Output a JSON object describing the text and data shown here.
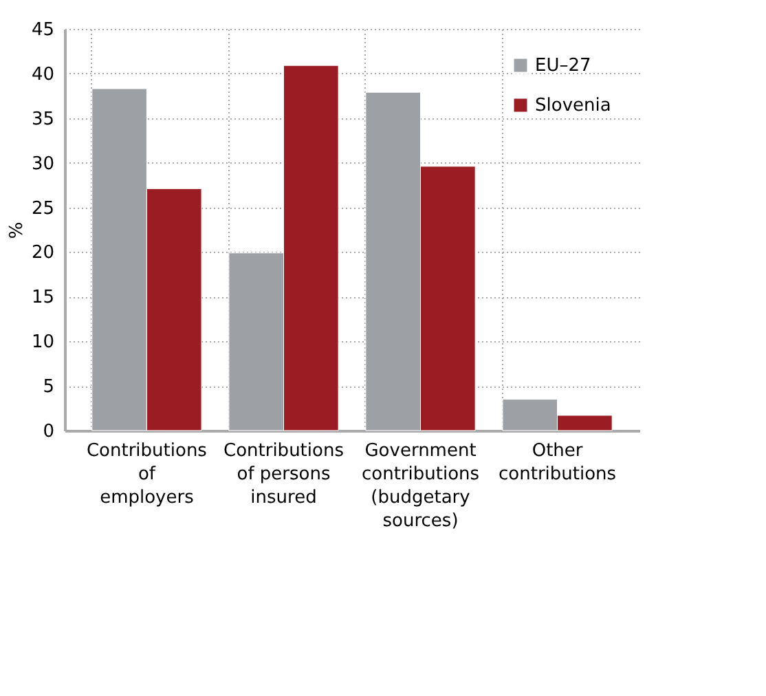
{
  "chart_data": {
    "type": "bar",
    "ylabel": "%",
    "categories": [
      "Contributions\nof\nemployers",
      "Contributions\nof persons\ninsured",
      "Government\ncontributions\n(budgetary\nsources)",
      "Other\ncontributions"
    ],
    "series": [
      {
        "name": "EU–27",
        "color": "#9da0a5",
        "values": [
          38.3,
          19.9,
          37.9,
          3.5
        ]
      },
      {
        "name": "Slovenia",
        "color": "#9b1c22",
        "values": [
          27.1,
          40.9,
          29.6,
          1.7
        ]
      }
    ],
    "ylim": [
      0,
      45
    ],
    "yticks": [
      0,
      5,
      10,
      15,
      20,
      25,
      30,
      35,
      40,
      45
    ],
    "grid": true,
    "legend": "top right"
  }
}
